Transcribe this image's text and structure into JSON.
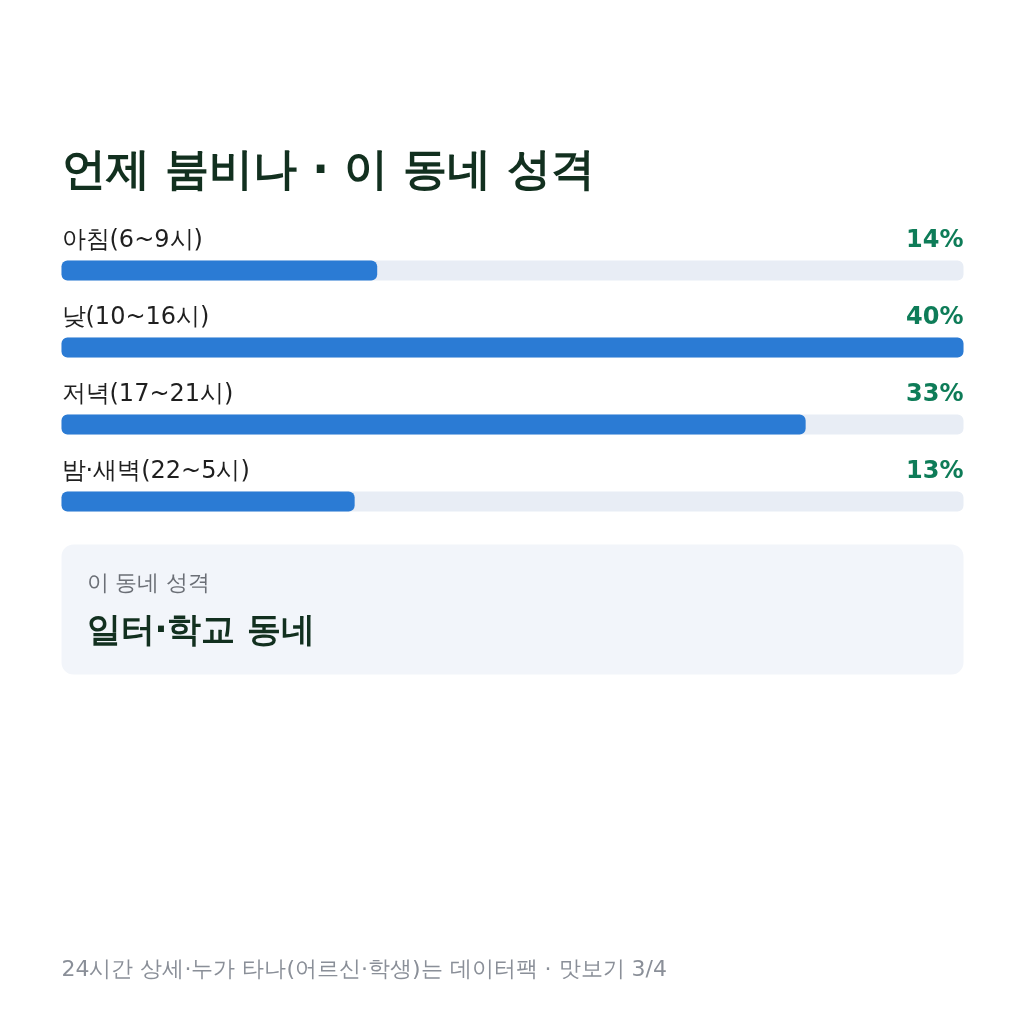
{
  "chart_data": {
    "type": "bar",
    "orientation": "horizontal",
    "title": "언제 붐비나 · 이 동네 성격",
    "categories": [
      "아침(6~9시)",
      "낮(10~16시)",
      "저녁(17~21시)",
      "밤·새벽(22~5시)"
    ],
    "values": [
      14,
      40,
      33,
      13
    ],
    "value_labels": [
      "14%",
      "40%",
      "33%",
      "13%"
    ],
    "color": "#2b7bd4",
    "xlim": [
      0,
      40
    ],
    "annotations": [
      "이 동네 성격",
      "일터·학교 동네",
      "24시간 상세·누가 타나(어르신·학생)는 데이터팩 · 맛보기 3/4"
    ]
  }
}
